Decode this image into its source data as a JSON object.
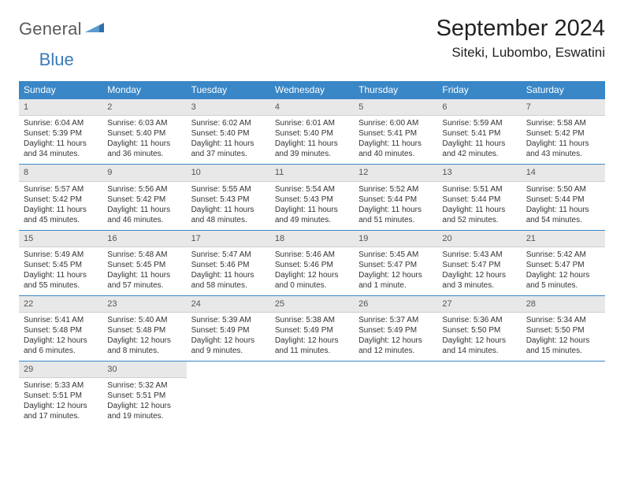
{
  "logo": {
    "general": "General",
    "blue": "Blue"
  },
  "header": {
    "title": "September 2024",
    "location": "Siteki, Lubombo, Eswatini"
  },
  "colors": {
    "header_bg": "#3a87c7",
    "header_text": "#ffffff",
    "daynum_bg": "#e8e8e8",
    "border": "#3a87c7",
    "logo_gray": "#5b5b5b",
    "logo_blue": "#3a7ab8"
  },
  "weekdays": [
    "Sunday",
    "Monday",
    "Tuesday",
    "Wednesday",
    "Thursday",
    "Friday",
    "Saturday"
  ],
  "days": [
    {
      "n": "1",
      "sunrise": "Sunrise: 6:04 AM",
      "sunset": "Sunset: 5:39 PM",
      "day1": "Daylight: 11 hours",
      "day2": "and 34 minutes."
    },
    {
      "n": "2",
      "sunrise": "Sunrise: 6:03 AM",
      "sunset": "Sunset: 5:40 PM",
      "day1": "Daylight: 11 hours",
      "day2": "and 36 minutes."
    },
    {
      "n": "3",
      "sunrise": "Sunrise: 6:02 AM",
      "sunset": "Sunset: 5:40 PM",
      "day1": "Daylight: 11 hours",
      "day2": "and 37 minutes."
    },
    {
      "n": "4",
      "sunrise": "Sunrise: 6:01 AM",
      "sunset": "Sunset: 5:40 PM",
      "day1": "Daylight: 11 hours",
      "day2": "and 39 minutes."
    },
    {
      "n": "5",
      "sunrise": "Sunrise: 6:00 AM",
      "sunset": "Sunset: 5:41 PM",
      "day1": "Daylight: 11 hours",
      "day2": "and 40 minutes."
    },
    {
      "n": "6",
      "sunrise": "Sunrise: 5:59 AM",
      "sunset": "Sunset: 5:41 PM",
      "day1": "Daylight: 11 hours",
      "day2": "and 42 minutes."
    },
    {
      "n": "7",
      "sunrise": "Sunrise: 5:58 AM",
      "sunset": "Sunset: 5:42 PM",
      "day1": "Daylight: 11 hours",
      "day2": "and 43 minutes."
    },
    {
      "n": "8",
      "sunrise": "Sunrise: 5:57 AM",
      "sunset": "Sunset: 5:42 PM",
      "day1": "Daylight: 11 hours",
      "day2": "and 45 minutes."
    },
    {
      "n": "9",
      "sunrise": "Sunrise: 5:56 AM",
      "sunset": "Sunset: 5:42 PM",
      "day1": "Daylight: 11 hours",
      "day2": "and 46 minutes."
    },
    {
      "n": "10",
      "sunrise": "Sunrise: 5:55 AM",
      "sunset": "Sunset: 5:43 PM",
      "day1": "Daylight: 11 hours",
      "day2": "and 48 minutes."
    },
    {
      "n": "11",
      "sunrise": "Sunrise: 5:54 AM",
      "sunset": "Sunset: 5:43 PM",
      "day1": "Daylight: 11 hours",
      "day2": "and 49 minutes."
    },
    {
      "n": "12",
      "sunrise": "Sunrise: 5:52 AM",
      "sunset": "Sunset: 5:44 PM",
      "day1": "Daylight: 11 hours",
      "day2": "and 51 minutes."
    },
    {
      "n": "13",
      "sunrise": "Sunrise: 5:51 AM",
      "sunset": "Sunset: 5:44 PM",
      "day1": "Daylight: 11 hours",
      "day2": "and 52 minutes."
    },
    {
      "n": "14",
      "sunrise": "Sunrise: 5:50 AM",
      "sunset": "Sunset: 5:44 PM",
      "day1": "Daylight: 11 hours",
      "day2": "and 54 minutes."
    },
    {
      "n": "15",
      "sunrise": "Sunrise: 5:49 AM",
      "sunset": "Sunset: 5:45 PM",
      "day1": "Daylight: 11 hours",
      "day2": "and 55 minutes."
    },
    {
      "n": "16",
      "sunrise": "Sunrise: 5:48 AM",
      "sunset": "Sunset: 5:45 PM",
      "day1": "Daylight: 11 hours",
      "day2": "and 57 minutes."
    },
    {
      "n": "17",
      "sunrise": "Sunrise: 5:47 AM",
      "sunset": "Sunset: 5:46 PM",
      "day1": "Daylight: 11 hours",
      "day2": "and 58 minutes."
    },
    {
      "n": "18",
      "sunrise": "Sunrise: 5:46 AM",
      "sunset": "Sunset: 5:46 PM",
      "day1": "Daylight: 12 hours",
      "day2": "and 0 minutes."
    },
    {
      "n": "19",
      "sunrise": "Sunrise: 5:45 AM",
      "sunset": "Sunset: 5:47 PM",
      "day1": "Daylight: 12 hours",
      "day2": "and 1 minute."
    },
    {
      "n": "20",
      "sunrise": "Sunrise: 5:43 AM",
      "sunset": "Sunset: 5:47 PM",
      "day1": "Daylight: 12 hours",
      "day2": "and 3 minutes."
    },
    {
      "n": "21",
      "sunrise": "Sunrise: 5:42 AM",
      "sunset": "Sunset: 5:47 PM",
      "day1": "Daylight: 12 hours",
      "day2": "and 5 minutes."
    },
    {
      "n": "22",
      "sunrise": "Sunrise: 5:41 AM",
      "sunset": "Sunset: 5:48 PM",
      "day1": "Daylight: 12 hours",
      "day2": "and 6 minutes."
    },
    {
      "n": "23",
      "sunrise": "Sunrise: 5:40 AM",
      "sunset": "Sunset: 5:48 PM",
      "day1": "Daylight: 12 hours",
      "day2": "and 8 minutes."
    },
    {
      "n": "24",
      "sunrise": "Sunrise: 5:39 AM",
      "sunset": "Sunset: 5:49 PM",
      "day1": "Daylight: 12 hours",
      "day2": "and 9 minutes."
    },
    {
      "n": "25",
      "sunrise": "Sunrise: 5:38 AM",
      "sunset": "Sunset: 5:49 PM",
      "day1": "Daylight: 12 hours",
      "day2": "and 11 minutes."
    },
    {
      "n": "26",
      "sunrise": "Sunrise: 5:37 AM",
      "sunset": "Sunset: 5:49 PM",
      "day1": "Daylight: 12 hours",
      "day2": "and 12 minutes."
    },
    {
      "n": "27",
      "sunrise": "Sunrise: 5:36 AM",
      "sunset": "Sunset: 5:50 PM",
      "day1": "Daylight: 12 hours",
      "day2": "and 14 minutes."
    },
    {
      "n": "28",
      "sunrise": "Sunrise: 5:34 AM",
      "sunset": "Sunset: 5:50 PM",
      "day1": "Daylight: 12 hours",
      "day2": "and 15 minutes."
    },
    {
      "n": "29",
      "sunrise": "Sunrise: 5:33 AM",
      "sunset": "Sunset: 5:51 PM",
      "day1": "Daylight: 12 hours",
      "day2": "and 17 minutes."
    },
    {
      "n": "30",
      "sunrise": "Sunrise: 5:32 AM",
      "sunset": "Sunset: 5:51 PM",
      "day1": "Daylight: 12 hours",
      "day2": "and 19 minutes."
    }
  ],
  "grid": {
    "start_weekday": 0,
    "total_cells": 35
  }
}
